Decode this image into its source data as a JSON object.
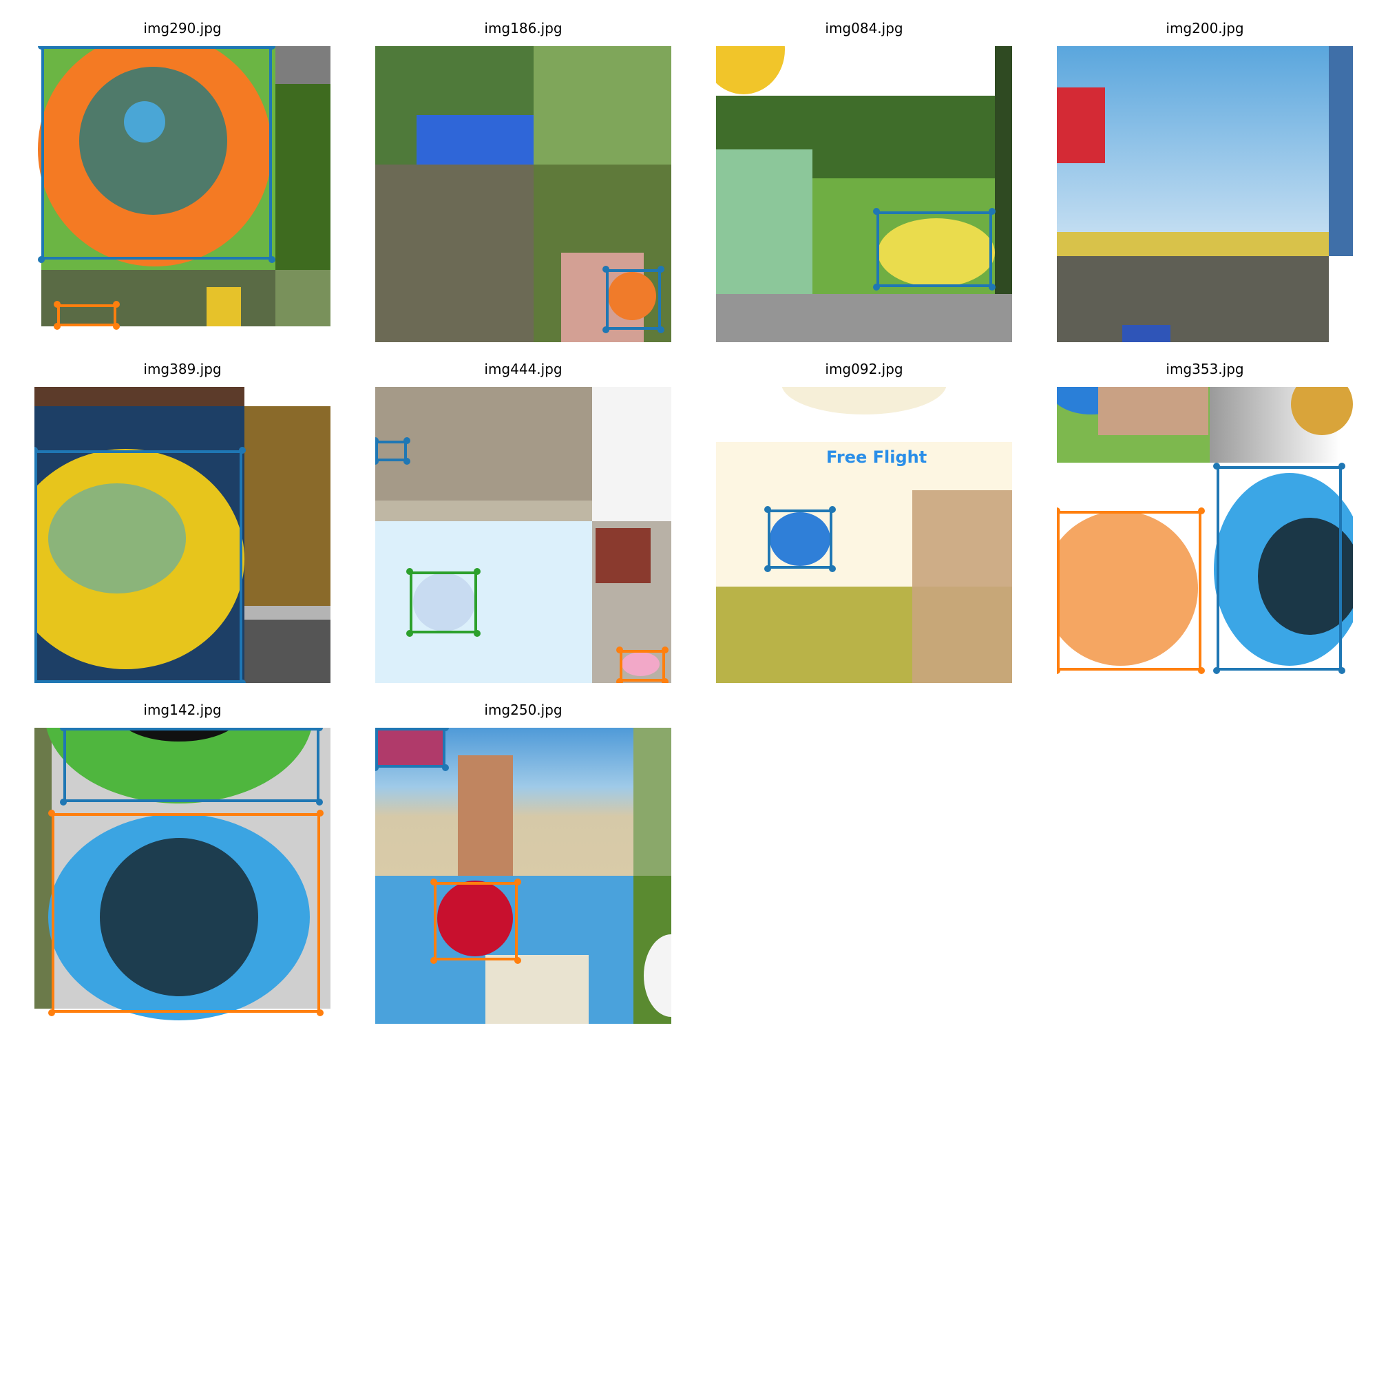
{
  "colors": {
    "box_blue": "#1f77b4",
    "box_orange": "#ff7f0e",
    "box_green": "#2ca02c"
  },
  "panels": [
    {
      "title": "img290.jpg"
    },
    {
      "title": "img186.jpg"
    },
    {
      "title": "img084.jpg"
    },
    {
      "title": "img200.jpg"
    },
    {
      "title": "img389.jpg"
    },
    {
      "title": "img444.jpg"
    },
    {
      "title": "img092.jpg",
      "banner": "Free Flight"
    },
    {
      "title": "img353.jpg"
    },
    {
      "title": "img142.jpg"
    },
    {
      "title": "img250.jpg"
    }
  ]
}
